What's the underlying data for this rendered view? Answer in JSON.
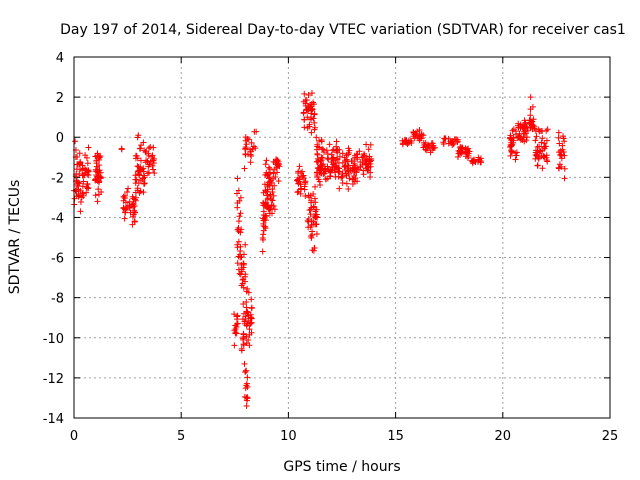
{
  "colors": {
    "marker": "#ff0000",
    "grid": "#a0a0a0",
    "axis": "#000000"
  },
  "chart_data": {
    "type": "scatter",
    "marker": "+",
    "title": "Day 197 of 2014, Sidereal Day-to-day VTEC variation (SDTVAR) for receiver cas1",
    "xlabel": "GPS time / hours",
    "ylabel": "SDTVAR / TECUs",
    "xlim": [
      0,
      25
    ],
    "ylim": [
      -14,
      4
    ],
    "xticks": [
      0,
      5,
      10,
      15,
      20,
      25
    ],
    "yticks": [
      -14,
      -12,
      -10,
      -8,
      -6,
      -4,
      -2,
      0,
      2,
      4
    ],
    "grid": true,
    "legend": "none",
    "series": [
      {
        "name": "cas1",
        "segments": [
          {
            "x_range": [
              0.0,
              0.45
            ],
            "y_center": -2.0,
            "y_spread": 1.6,
            "count": 45
          },
          {
            "x_range": [
              0.45,
              0.7
            ],
            "y_center": -1.6,
            "y_spread": 1.3,
            "count": 20
          },
          {
            "x_range": [
              0.95,
              1.3
            ],
            "y_center": -1.9,
            "y_spread": 1.6,
            "count": 40
          },
          {
            "x_range": [
              2.2,
              2.3
            ],
            "y_center": -0.6,
            "y_spread": 0.1,
            "count": 2
          },
          {
            "x_range": [
              2.3,
              2.9
            ],
            "y_center": -3.4,
            "y_spread": 1.0,
            "count": 40
          },
          {
            "x_range": [
              2.85,
              3.3
            ],
            "y_center": -1.6,
            "y_spread": 1.7,
            "count": 45
          },
          {
            "x_range": [
              3.3,
              3.75
            ],
            "y_center": -1.1,
            "y_spread": 0.8,
            "count": 25
          },
          {
            "x_range": [
              7.45,
              7.65
            ],
            "y_center": -9.5,
            "y_spread": 1.0,
            "count": 14
          },
          {
            "x_range": [
              7.6,
              7.8
            ],
            "y_center": -5.0,
            "y_spread": 3.3,
            "count": 28
          },
          {
            "x_range": [
              7.8,
              8.0
            ],
            "y_center": -8.0,
            "y_spread": 3.5,
            "count": 34
          },
          {
            "x_range": [
              7.95,
              8.1
            ],
            "y_center": -12.3,
            "y_spread": 1.2,
            "count": 14
          },
          {
            "x_range": [
              8.0,
              8.3
            ],
            "y_center": -9.0,
            "y_spread": 2.2,
            "count": 32
          },
          {
            "x_range": [
              7.95,
              8.5
            ],
            "y_center": -0.8,
            "y_spread": 1.0,
            "count": 22
          },
          {
            "x_range": [
              8.4,
              8.5
            ],
            "y_center": 0.3,
            "y_spread": 0.15,
            "count": 2
          },
          {
            "x_range": [
              8.8,
              9.0
            ],
            "y_center": -4.2,
            "y_spread": 1.6,
            "count": 22
          },
          {
            "x_range": [
              8.9,
              9.4
            ],
            "y_center": -2.6,
            "y_spread": 1.6,
            "count": 60
          },
          {
            "x_range": [
              9.4,
              9.6
            ],
            "y_center": -1.5,
            "y_spread": 0.8,
            "count": 15
          },
          {
            "x_range": [
              10.4,
              10.8
            ],
            "y_center": -2.2,
            "y_spread": 0.9,
            "count": 28
          },
          {
            "x_range": [
              10.7,
              11.25
            ],
            "y_center": 1.2,
            "y_spread": 1.1,
            "count": 42
          },
          {
            "x_range": [
              10.9,
              11.35
            ],
            "y_center": -3.8,
            "y_spread": 1.5,
            "count": 40
          },
          {
            "x_range": [
              11.1,
              11.3
            ],
            "y_center": -5.6,
            "y_spread": 0.3,
            "count": 4
          },
          {
            "x_range": [
              11.3,
              12.3
            ],
            "y_center": -1.2,
            "y_spread": 1.3,
            "count": 90
          },
          {
            "x_range": [
              12.3,
              13.3
            ],
            "y_center": -1.5,
            "y_spread": 1.2,
            "count": 70
          },
          {
            "x_range": [
              13.3,
              13.9
            ],
            "y_center": -1.2,
            "y_spread": 0.9,
            "count": 40
          },
          {
            "x_range": [
              15.3,
              15.8
            ],
            "y_center": -0.2,
            "y_spread": 0.2,
            "count": 18
          },
          {
            "x_range": [
              15.8,
              16.3
            ],
            "y_center": 0.1,
            "y_spread": 0.3,
            "count": 20
          },
          {
            "x_range": [
              16.3,
              16.9
            ],
            "y_center": -0.5,
            "y_spread": 0.3,
            "count": 22
          },
          {
            "x_range": [
              17.2,
              17.9
            ],
            "y_center": -0.2,
            "y_spread": 0.3,
            "count": 22
          },
          {
            "x_range": [
              17.9,
              18.5
            ],
            "y_center": -0.7,
            "y_spread": 0.4,
            "count": 30
          },
          {
            "x_range": [
              18.5,
              19.0
            ],
            "y_center": -1.2,
            "y_spread": 0.2,
            "count": 18
          },
          {
            "x_range": [
              20.3,
              20.7
            ],
            "y_center": -0.4,
            "y_spread": 0.9,
            "count": 30
          },
          {
            "x_range": [
              20.7,
              21.2
            ],
            "y_center": 0.3,
            "y_spread": 0.9,
            "count": 35
          },
          {
            "x_range": [
              21.2,
              21.5
            ],
            "y_center": 0.6,
            "y_spread": 1.0,
            "count": 20
          },
          {
            "x_range": [
              21.5,
              22.1
            ],
            "y_center": -0.5,
            "y_spread": 1.1,
            "count": 45
          },
          {
            "x_range": [
              22.6,
              22.9
            ],
            "y_center": -0.9,
            "y_spread": 1.3,
            "count": 22
          }
        ],
        "extra_points": [
          {
            "x": 21.3,
            "y": 2.0
          },
          {
            "x": 11.1,
            "y": 2.2
          },
          {
            "x": 8.05,
            "y": -13.4
          },
          {
            "x": 0.05,
            "y": -0.2
          },
          {
            "x": 1.1,
            "y": -3.2
          },
          {
            "x": 0.3,
            "y": -3.7
          },
          {
            "x": 8.8,
            "y": -5.7
          },
          {
            "x": 3.0,
            "y": 0.1
          }
        ]
      }
    ]
  }
}
